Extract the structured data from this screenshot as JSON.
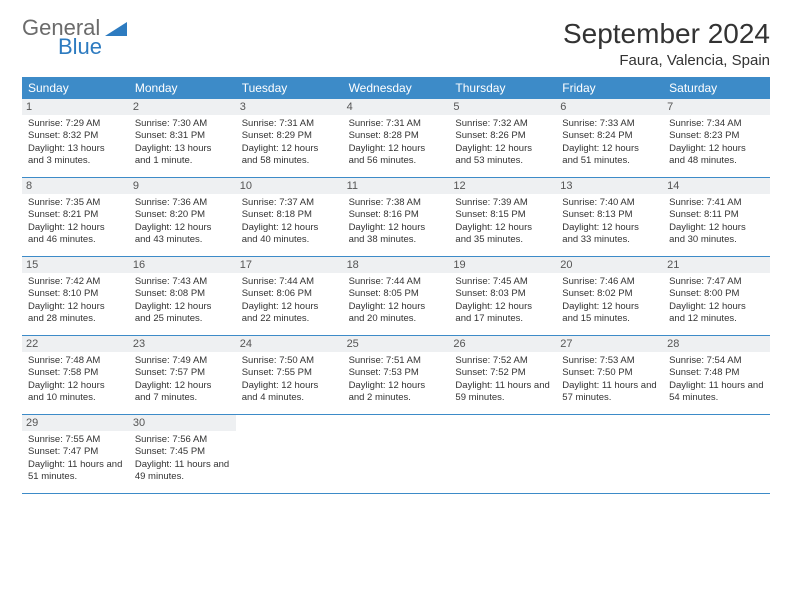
{
  "logo": {
    "general": "General",
    "blue": "Blue"
  },
  "title": "September 2024",
  "location": "Faura, Valencia, Spain",
  "colors": {
    "header_bg": "#3d8bc8",
    "header_text": "#ffffff",
    "daynum_bg": "#eef0f2",
    "logo_blue": "#2d7bc0",
    "logo_gray": "#6b6b6b",
    "rule": "#3d8bc8"
  },
  "dayNames": [
    "Sunday",
    "Monday",
    "Tuesday",
    "Wednesday",
    "Thursday",
    "Friday",
    "Saturday"
  ],
  "days": [
    {
      "n": "1",
      "sr": "Sunrise: 7:29 AM",
      "ss": "Sunset: 8:32 PM",
      "dl": "Daylight: 13 hours and 3 minutes."
    },
    {
      "n": "2",
      "sr": "Sunrise: 7:30 AM",
      "ss": "Sunset: 8:31 PM",
      "dl": "Daylight: 13 hours and 1 minute."
    },
    {
      "n": "3",
      "sr": "Sunrise: 7:31 AM",
      "ss": "Sunset: 8:29 PM",
      "dl": "Daylight: 12 hours and 58 minutes."
    },
    {
      "n": "4",
      "sr": "Sunrise: 7:31 AM",
      "ss": "Sunset: 8:28 PM",
      "dl": "Daylight: 12 hours and 56 minutes."
    },
    {
      "n": "5",
      "sr": "Sunrise: 7:32 AM",
      "ss": "Sunset: 8:26 PM",
      "dl": "Daylight: 12 hours and 53 minutes."
    },
    {
      "n": "6",
      "sr": "Sunrise: 7:33 AM",
      "ss": "Sunset: 8:24 PM",
      "dl": "Daylight: 12 hours and 51 minutes."
    },
    {
      "n": "7",
      "sr": "Sunrise: 7:34 AM",
      "ss": "Sunset: 8:23 PM",
      "dl": "Daylight: 12 hours and 48 minutes."
    },
    {
      "n": "8",
      "sr": "Sunrise: 7:35 AM",
      "ss": "Sunset: 8:21 PM",
      "dl": "Daylight: 12 hours and 46 minutes."
    },
    {
      "n": "9",
      "sr": "Sunrise: 7:36 AM",
      "ss": "Sunset: 8:20 PM",
      "dl": "Daylight: 12 hours and 43 minutes."
    },
    {
      "n": "10",
      "sr": "Sunrise: 7:37 AM",
      "ss": "Sunset: 8:18 PM",
      "dl": "Daylight: 12 hours and 40 minutes."
    },
    {
      "n": "11",
      "sr": "Sunrise: 7:38 AM",
      "ss": "Sunset: 8:16 PM",
      "dl": "Daylight: 12 hours and 38 minutes."
    },
    {
      "n": "12",
      "sr": "Sunrise: 7:39 AM",
      "ss": "Sunset: 8:15 PM",
      "dl": "Daylight: 12 hours and 35 minutes."
    },
    {
      "n": "13",
      "sr": "Sunrise: 7:40 AM",
      "ss": "Sunset: 8:13 PM",
      "dl": "Daylight: 12 hours and 33 minutes."
    },
    {
      "n": "14",
      "sr": "Sunrise: 7:41 AM",
      "ss": "Sunset: 8:11 PM",
      "dl": "Daylight: 12 hours and 30 minutes."
    },
    {
      "n": "15",
      "sr": "Sunrise: 7:42 AM",
      "ss": "Sunset: 8:10 PM",
      "dl": "Daylight: 12 hours and 28 minutes."
    },
    {
      "n": "16",
      "sr": "Sunrise: 7:43 AM",
      "ss": "Sunset: 8:08 PM",
      "dl": "Daylight: 12 hours and 25 minutes."
    },
    {
      "n": "17",
      "sr": "Sunrise: 7:44 AM",
      "ss": "Sunset: 8:06 PM",
      "dl": "Daylight: 12 hours and 22 minutes."
    },
    {
      "n": "18",
      "sr": "Sunrise: 7:44 AM",
      "ss": "Sunset: 8:05 PM",
      "dl": "Daylight: 12 hours and 20 minutes."
    },
    {
      "n": "19",
      "sr": "Sunrise: 7:45 AM",
      "ss": "Sunset: 8:03 PM",
      "dl": "Daylight: 12 hours and 17 minutes."
    },
    {
      "n": "20",
      "sr": "Sunrise: 7:46 AM",
      "ss": "Sunset: 8:02 PM",
      "dl": "Daylight: 12 hours and 15 minutes."
    },
    {
      "n": "21",
      "sr": "Sunrise: 7:47 AM",
      "ss": "Sunset: 8:00 PM",
      "dl": "Daylight: 12 hours and 12 minutes."
    },
    {
      "n": "22",
      "sr": "Sunrise: 7:48 AM",
      "ss": "Sunset: 7:58 PM",
      "dl": "Daylight: 12 hours and 10 minutes."
    },
    {
      "n": "23",
      "sr": "Sunrise: 7:49 AM",
      "ss": "Sunset: 7:57 PM",
      "dl": "Daylight: 12 hours and 7 minutes."
    },
    {
      "n": "24",
      "sr": "Sunrise: 7:50 AM",
      "ss": "Sunset: 7:55 PM",
      "dl": "Daylight: 12 hours and 4 minutes."
    },
    {
      "n": "25",
      "sr": "Sunrise: 7:51 AM",
      "ss": "Sunset: 7:53 PM",
      "dl": "Daylight: 12 hours and 2 minutes."
    },
    {
      "n": "26",
      "sr": "Sunrise: 7:52 AM",
      "ss": "Sunset: 7:52 PM",
      "dl": "Daylight: 11 hours and 59 minutes."
    },
    {
      "n": "27",
      "sr": "Sunrise: 7:53 AM",
      "ss": "Sunset: 7:50 PM",
      "dl": "Daylight: 11 hours and 57 minutes."
    },
    {
      "n": "28",
      "sr": "Sunrise: 7:54 AM",
      "ss": "Sunset: 7:48 PM",
      "dl": "Daylight: 11 hours and 54 minutes."
    },
    {
      "n": "29",
      "sr": "Sunrise: 7:55 AM",
      "ss": "Sunset: 7:47 PM",
      "dl": "Daylight: 11 hours and 51 minutes."
    },
    {
      "n": "30",
      "sr": "Sunrise: 7:56 AM",
      "ss": "Sunset: 7:45 PM",
      "dl": "Daylight: 11 hours and 49 minutes."
    }
  ]
}
